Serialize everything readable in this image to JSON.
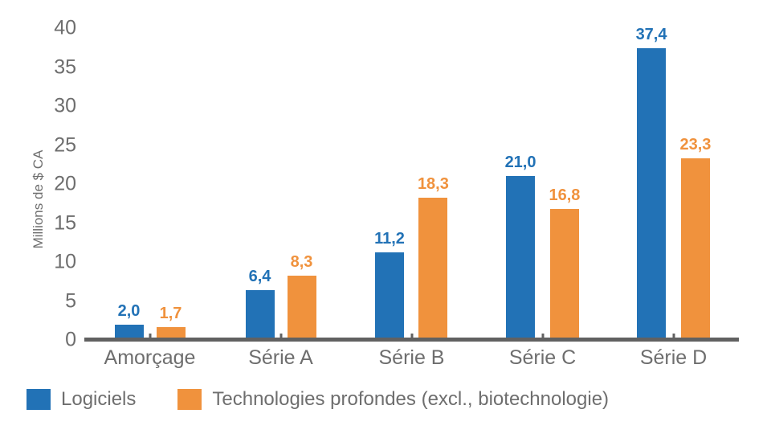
{
  "chart_data": {
    "type": "bar",
    "title": "",
    "xlabel": "",
    "ylabel": "Millions de $ CA",
    "categories": [
      "Amorçage",
      "Série A",
      "Série B",
      "Série C",
      "Série D"
    ],
    "series": [
      {
        "name": "Logiciels",
        "color": "#2272B6",
        "values": [
          2.0,
          6.4,
          11.2,
          21.0,
          37.4
        ],
        "value_labels": [
          "2,0",
          "6,4",
          "11,2",
          "21,0",
          "37,4"
        ]
      },
      {
        "name": "Technologies profondes (excl., biotechnologie)",
        "color": "#F0923D",
        "values": [
          1.7,
          8.3,
          18.3,
          16.8,
          23.3
        ],
        "value_labels": [
          "1,7",
          "8,3",
          "18,3",
          "16,8",
          "23,3"
        ]
      }
    ],
    "yticks": [
      0,
      5,
      10,
      15,
      20,
      25,
      30,
      35,
      40
    ],
    "ylim": [
      0,
      40
    ],
    "grid": false,
    "legend_position": "bottom-left",
    "axis_color": "#616161",
    "text_color": "#6E6E6E"
  }
}
